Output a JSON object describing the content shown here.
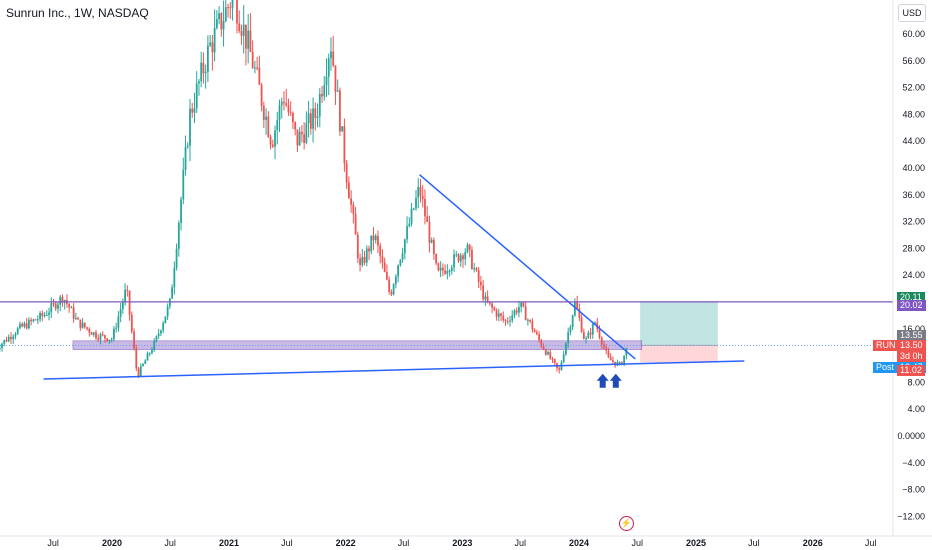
{
  "header": {
    "symbol_title": "Sunrun Inc., 1W, NASDAQ",
    "currency": "USD"
  },
  "colors": {
    "up": "#26a69a",
    "down": "#ef5350",
    "trendline": "#2962ff",
    "level": "#7e57c2",
    "zone_fill": "#b39ddb",
    "target_fill": "#b2dfdb",
    "stop_fill": "#ffcdd2",
    "arrow": "#1e4bb8",
    "axis_text": "#131722"
  },
  "badges": {
    "target": {
      "value": "20.11",
      "color": "#1b8a5a"
    },
    "level": {
      "value": "20.02",
      "color": "#7e57c2"
    },
    "entry": {
      "value": "13.55",
      "color": "#787b86"
    },
    "last_label": "RUN",
    "last_value": "13.50",
    "countdown": "3d 0h",
    "post_label": "Post",
    "post_value": "13.47",
    "stop": {
      "value": "11.02",
      "color": "#ef5350"
    }
  },
  "watermark_icon": "lightning-icon",
  "chart_data": {
    "type": "candlestick",
    "title": "Sunrun Inc., 1W, NASDAQ",
    "y_axis": {
      "position": "right",
      "range": [
        -13,
        65
      ],
      "ticks": [
        "60.00",
        "56.00",
        "52.00",
        "48.00",
        "44.00",
        "40.00",
        "36.00",
        "32.00",
        "28.00",
        "24.00",
        "16.00",
        "8.00",
        "4.00",
        "0.0000",
        "−4.00",
        "−8.00",
        "−12.00"
      ]
    },
    "x_axis": {
      "ticks": [
        {
          "date": "2019-07-01",
          "label": "Jul"
        },
        {
          "date": "2020-01-01",
          "label": "2020"
        },
        {
          "date": "2020-07-01",
          "label": "Jul"
        },
        {
          "date": "2021-01-01",
          "label": "2021"
        },
        {
          "date": "2021-07-01",
          "label": "Jul"
        },
        {
          "date": "2022-01-01",
          "label": "2022"
        },
        {
          "date": "2022-07-01",
          "label": "Jul"
        },
        {
          "date": "2023-01-01",
          "label": "2023"
        },
        {
          "date": "2023-07-01",
          "label": "Jul"
        },
        {
          "date": "2024-01-01",
          "label": "2024"
        },
        {
          "date": "2024-07-01",
          "label": "Jul"
        },
        {
          "date": "2025-01-01",
          "label": "2025"
        },
        {
          "date": "2025-07-01",
          "label": "Jul"
        },
        {
          "date": "2026-01-01",
          "label": "2026"
        },
        {
          "date": "2026-07-01",
          "label": "Jul"
        }
      ]
    },
    "price_path": [
      {
        "date": "2019-01-01",
        "value": 13.0
      },
      {
        "date": "2019-03-15",
        "value": 16.0
      },
      {
        "date": "2019-06-01",
        "value": 18.0
      },
      {
        "date": "2019-08-01",
        "value": 20.8
      },
      {
        "date": "2019-09-15",
        "value": 17.0
      },
      {
        "date": "2019-11-15",
        "value": 15.0
      },
      {
        "date": "2020-01-01",
        "value": 14.5
      },
      {
        "date": "2020-02-15",
        "value": 22.0
      },
      {
        "date": "2020-03-20",
        "value": 9.0
      },
      {
        "date": "2020-05-15",
        "value": 14.0
      },
      {
        "date": "2020-07-01",
        "value": 20.0
      },
      {
        "date": "2020-09-01",
        "value": 48.0
      },
      {
        "date": "2020-11-01",
        "value": 58.0
      },
      {
        "date": "2021-01-15",
        "value": 66.0
      },
      {
        "date": "2021-03-15",
        "value": 56.0
      },
      {
        "date": "2021-05-15",
        "value": 44.0
      },
      {
        "date": "2021-06-20",
        "value": 51.0
      },
      {
        "date": "2021-08-01",
        "value": 44.0
      },
      {
        "date": "2021-10-01",
        "value": 48.0
      },
      {
        "date": "2021-11-15",
        "value": 59.0
      },
      {
        "date": "2022-01-01",
        "value": 40.0
      },
      {
        "date": "2022-02-15",
        "value": 25.0
      },
      {
        "date": "2022-04-01",
        "value": 30.0
      },
      {
        "date": "2022-05-20",
        "value": 21.0
      },
      {
        "date": "2022-06-15",
        "value": 26.0
      },
      {
        "date": "2022-08-20",
        "value": 37.0
      },
      {
        "date": "2022-10-15",
        "value": 24.0
      },
      {
        "date": "2023-01-15",
        "value": 28.0
      },
      {
        "date": "2023-03-15",
        "value": 20.0
      },
      {
        "date": "2023-05-15",
        "value": 17.0
      },
      {
        "date": "2023-07-01",
        "value": 19.5
      },
      {
        "date": "2023-09-01",
        "value": 14.0
      },
      {
        "date": "2023-10-30",
        "value": 9.5
      },
      {
        "date": "2023-12-20",
        "value": 20.0
      },
      {
        "date": "2024-01-20",
        "value": 14.0
      },
      {
        "date": "2024-02-20",
        "value": 17.0
      },
      {
        "date": "2024-04-01",
        "value": 11.5
      },
      {
        "date": "2024-05-10",
        "value": 10.5
      },
      {
        "date": "2024-06-01",
        "value": 13.5
      }
    ],
    "lines": [
      {
        "name": "descending-trendline",
        "from": {
          "date": "2022-08-20",
          "value": 39.0
        },
        "to": {
          "date": "2024-06-25",
          "value": 11.5
        }
      },
      {
        "name": "ascending-support",
        "from": {
          "date": "2019-06-01",
          "value": 8.5
        },
        "to": {
          "date": "2025-06-01",
          "value": 11.2
        }
      },
      {
        "name": "horizontal-level",
        "value": 20.02
      }
    ],
    "zone": {
      "from_date": "2019-09-01",
      "to_date": "2024-07-15",
      "low": 12.9,
      "high": 14.2
    },
    "position": {
      "from_date": "2024-07-10",
      "to_date": "2025-03-10",
      "entry": 13.55,
      "target": 20.11,
      "stop": 11.02
    },
    "arrows": [
      {
        "date": "2024-03-15",
        "value": 7.8
      },
      {
        "date": "2024-04-25",
        "value": 7.8
      }
    ]
  }
}
